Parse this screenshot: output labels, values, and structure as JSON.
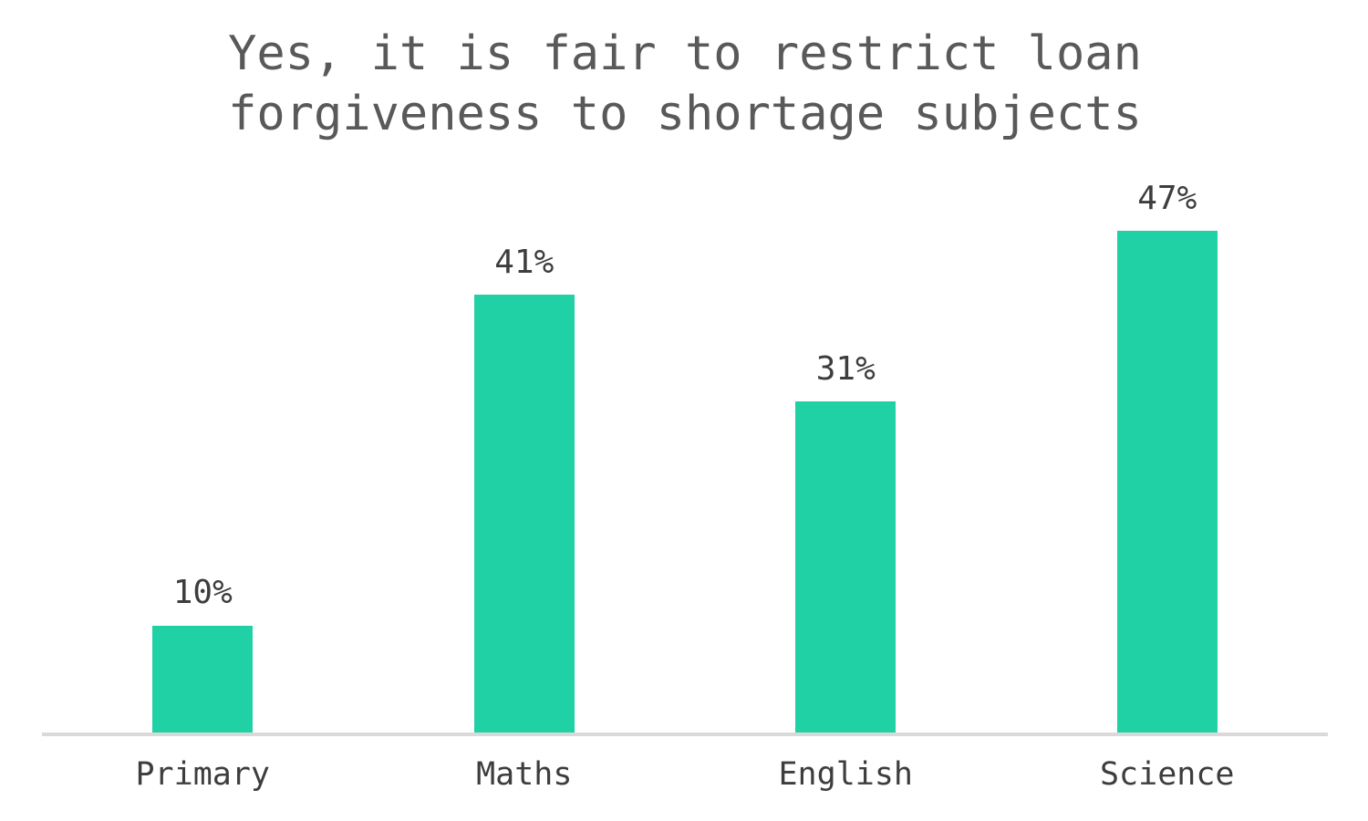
{
  "title": {
    "line1": "Yes, it is fair to restrict loan",
    "line2": "forgiveness to shortage subjects"
  },
  "chart_data": {
    "type": "bar",
    "title": "Yes, it is fair to restrict loan forgiveness to shortage subjects",
    "categories": [
      "Primary",
      "Maths",
      "English",
      "Science"
    ],
    "values": [
      10,
      41,
      31,
      47
    ],
    "data_labels": [
      "10%",
      "41%",
      "31%",
      "47%"
    ],
    "xlabel": "",
    "ylabel": "",
    "ylim": [
      0,
      50
    ],
    "grid": false,
    "legend": false,
    "data_label_position": "above-bar",
    "bar_color": "#21d1a6",
    "axis_line_color": "#d9d9d9",
    "title_color": "#595959",
    "label_color": "#3d3d3d"
  }
}
